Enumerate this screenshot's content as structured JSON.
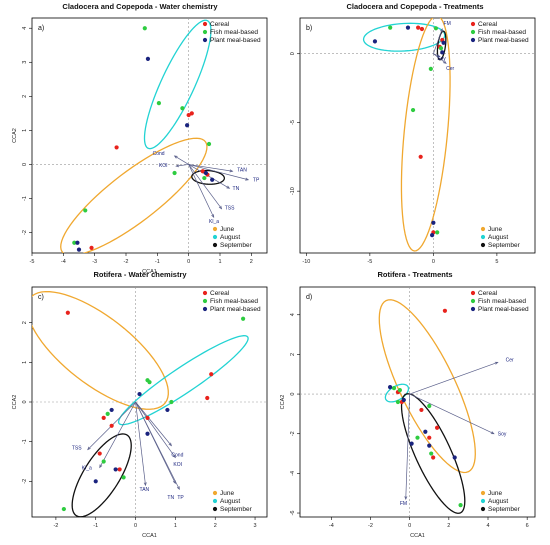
{
  "colors": {
    "cereal": "#e8221c",
    "fish": "#2ecc40",
    "plant": "#1a237e",
    "june": "#f0a830",
    "august": "#22d3d3",
    "september": "#111111",
    "vector": "#5a5f8a"
  },
  "chart_data": [
    {
      "type": "scatter",
      "panel_label": "a)",
      "title": "Cladocera and Copepoda - Water chemistry",
      "xlabel": "CCA1",
      "ylabel": "CCA2",
      "xlim": [
        -5,
        2.5
      ],
      "ylim": [
        -2.6,
        4.3
      ],
      "xticks": [
        -5,
        -4,
        -3,
        -2,
        -1,
        0,
        1,
        2
      ],
      "yticks": [
        -2,
        -1,
        0,
        1,
        2,
        3,
        4
      ],
      "legend_top": {
        "position": "top-right",
        "entries": [
          "Cereal",
          "Fish meal-based",
          "Plant meal-based"
        ]
      },
      "legend_bottom": {
        "position": "bottom-right",
        "entries": [
          "June",
          "August",
          "September"
        ]
      },
      "series": [
        {
          "name": "Cereal",
          "color_key": "cereal",
          "points": [
            [
              0.1,
              1.5
            ],
            [
              0.0,
              1.45
            ],
            [
              -2.3,
              0.5
            ],
            [
              -3.1,
              -2.45
            ],
            [
              0.6,
              -0.3
            ],
            [
              0.45,
              -0.2
            ]
          ]
        },
        {
          "name": "Fish meal-based",
          "color_key": "fish",
          "points": [
            [
              -1.4,
              4.0
            ],
            [
              -0.2,
              1.65
            ],
            [
              0.65,
              0.6
            ],
            [
              -0.95,
              1.8
            ],
            [
              -3.3,
              -1.35
            ],
            [
              -3.65,
              -2.3
            ],
            [
              -0.45,
              -0.25
            ],
            [
              0.5,
              -0.4
            ]
          ]
        },
        {
          "name": "Plant meal-based",
          "color_key": "plant",
          "points": [
            [
              -1.3,
              3.1
            ],
            [
              -0.05,
              1.15
            ],
            [
              -3.55,
              -2.3
            ],
            [
              -3.5,
              -2.5
            ],
            [
              0.75,
              -0.45
            ],
            [
              0.55,
              -0.25
            ]
          ]
        }
      ],
      "ellipses": [
        {
          "month": "August",
          "color_key": "august",
          "cx": -0.35,
          "cy": 2.35,
          "rx": 2.1,
          "ry": 0.52,
          "angle_deg": 63
        },
        {
          "month": "June",
          "color_key": "june",
          "cx": -1.75,
          "cy": -0.95,
          "rx": 2.8,
          "ry": 0.75,
          "angle_deg": 35
        },
        {
          "month": "September",
          "color_key": "september",
          "cx": 0.62,
          "cy": -0.38,
          "rx": 0.52,
          "ry": 0.2,
          "angle_deg": -3
        }
      ],
      "vectors": [
        {
          "label": "TAN",
          "end": [
            1.4,
            -0.2
          ],
          "label_pos": [
            1.55,
            -0.2
          ]
        },
        {
          "label": "TP",
          "end": [
            1.9,
            -0.45
          ],
          "label_pos": [
            2.05,
            -0.5
          ]
        },
        {
          "label": "TN",
          "end": [
            1.3,
            -0.7
          ],
          "label_pos": [
            1.4,
            -0.75
          ]
        },
        {
          "label": "TSS",
          "end": [
            1.05,
            -1.3
          ],
          "label_pos": [
            1.15,
            -1.33
          ]
        },
        {
          "label": "Kl_a",
          "end": [
            0.8,
            -1.55
          ],
          "label_pos": [
            0.65,
            -1.72
          ]
        },
        {
          "label": "Cond",
          "end": [
            -0.45,
            0.25
          ],
          "label_pos": [
            -1.15,
            0.28
          ]
        },
        {
          "label": "KOI",
          "end": [
            -0.4,
            -0.05
          ],
          "label_pos": [
            -0.95,
            -0.08
          ]
        }
      ]
    },
    {
      "type": "scatter",
      "panel_label": "b)",
      "title": "Cladocera and Copepoda - Treatments",
      "xlabel": "",
      "ylabel": "",
      "xlim": [
        -10.5,
        8
      ],
      "ylim": [
        -14.5,
        2.6
      ],
      "xticks": [
        -10,
        -5,
        0,
        5
      ],
      "yticks": [
        -10,
        -5,
        0
      ],
      "legend_top": {
        "position": "top-right",
        "entries": [
          "Cereal",
          "Fish meal-based",
          "Plant meal-based"
        ]
      },
      "legend_bottom": {
        "position": "bottom-right",
        "entries": [
          "June",
          "August",
          "September"
        ]
      },
      "series": [
        {
          "name": "Cereal",
          "color_key": "cereal",
          "points": [
            [
              -1.2,
              1.9
            ],
            [
              -0.9,
              1.8
            ],
            [
              0.7,
              1.0
            ],
            [
              0.5,
              0.5
            ],
            [
              -1.0,
              -7.5
            ],
            [
              0.0,
              -13.0
            ]
          ]
        },
        {
          "name": "Fish meal-based",
          "color_key": "fish",
          "points": [
            [
              -3.4,
              1.9
            ],
            [
              0.2,
              1.85
            ],
            [
              -0.2,
              -1.1
            ],
            [
              -1.6,
              -4.1
            ],
            [
              0.3,
              -13.0
            ],
            [
              0.6,
              0.4
            ]
          ]
        },
        {
          "name": "Plant meal-based",
          "color_key": "plant",
          "points": [
            [
              -4.6,
              0.9
            ],
            [
              -2.0,
              1.9
            ],
            [
              0.7,
              0.1
            ],
            [
              0.0,
              -12.3
            ],
            [
              -0.1,
              -13.2
            ],
            [
              0.8,
              0.8
            ]
          ]
        }
      ],
      "ellipses": [
        {
          "month": "August",
          "color_key": "august",
          "cx": -2.3,
          "cy": 1.2,
          "rx": 3.2,
          "ry": 1.0,
          "angle_deg": 3
        },
        {
          "month": "June",
          "color_key": "june",
          "cx": -0.6,
          "cy": -5.8,
          "rx": 8.6,
          "ry": 1.7,
          "angle_deg": 84
        },
        {
          "month": "September",
          "color_key": "september",
          "cx": 0.65,
          "cy": 0.6,
          "rx": 1.05,
          "ry": 0.3,
          "angle_deg": 82
        }
      ],
      "vectors": [
        {
          "label": "FM",
          "end": [
            0.7,
            1.8
          ],
          "label_pos": [
            0.8,
            2.1
          ]
        },
        {
          "label": "Soy",
          "end": [
            0.5,
            -0.2
          ],
          "label_pos": [
            0.3,
            -0.45
          ]
        },
        {
          "label": "Cer",
          "end": [
            1.0,
            -0.7
          ],
          "label_pos": [
            1.0,
            -1.2
          ]
        }
      ]
    },
    {
      "type": "scatter",
      "panel_label": "c)",
      "title": "Rotifera - Water chemistry",
      "xlabel": "CCA1",
      "ylabel": "CCA2",
      "xlim": [
        -2.6,
        3.3
      ],
      "ylim": [
        -2.9,
        2.9
      ],
      "xticks": [
        -2,
        -1,
        0,
        1,
        2,
        3
      ],
      "yticks": [
        -2,
        -1,
        0,
        1,
        2
      ],
      "legend_top": {
        "position": "top-right",
        "entries": [
          "Cereal",
          "Fish meal-based",
          "Plant meal-based"
        ]
      },
      "legend_bottom": {
        "position": "bottom-right",
        "entries": [
          "June",
          "August",
          "September"
        ]
      },
      "series": [
        {
          "name": "Cereal",
          "color_key": "cereal",
          "points": [
            [
              -1.7,
              2.25
            ],
            [
              -0.8,
              -0.4
            ],
            [
              -0.6,
              -0.6
            ],
            [
              0.3,
              -0.4
            ],
            [
              1.8,
              0.1
            ],
            [
              1.9,
              0.7
            ],
            [
              -0.9,
              -1.3
            ],
            [
              -0.4,
              -1.7
            ]
          ]
        },
        {
          "name": "Fish meal-based",
          "color_key": "fish",
          "points": [
            [
              -0.7,
              -0.3
            ],
            [
              0.3,
              0.55
            ],
            [
              0.35,
              0.5
            ],
            [
              0.9,
              0.0
            ],
            [
              -0.8,
              -1.5
            ],
            [
              -0.3,
              -1.9
            ],
            [
              -1.8,
              -2.7
            ],
            [
              2.7,
              2.1
            ]
          ]
        },
        {
          "name": "Plant meal-based",
          "color_key": "plant",
          "points": [
            [
              0.1,
              0.2
            ],
            [
              -0.6,
              -0.2
            ],
            [
              0.8,
              -0.2
            ],
            [
              -1.0,
              -2.0
            ],
            [
              -0.5,
              -1.7
            ],
            [
              0.3,
              -0.8
            ]
          ]
        }
      ],
      "ellipses": [
        {
          "month": "June",
          "color_key": "june",
          "cx": -0.95,
          "cy": 1.3,
          "rx": 2.15,
          "ry": 0.85,
          "angle_deg": -38
        },
        {
          "month": "August",
          "color_key": "august",
          "cx": 1.2,
          "cy": 0.55,
          "rx": 1.95,
          "ry": 0.32,
          "angle_deg": 34
        },
        {
          "month": "September",
          "color_key": "september",
          "cx": -0.85,
          "cy": -1.85,
          "rx": 1.2,
          "ry": 0.45,
          "angle_deg": 58
        }
      ],
      "vectors": [
        {
          "label": "TSS",
          "end": [
            -1.2,
            -1.2
          ],
          "label_pos": [
            -1.6,
            -1.2
          ]
        },
        {
          "label": "Kl_a",
          "end": [
            -0.9,
            -1.65
          ],
          "label_pos": [
            -1.35,
            -1.7
          ]
        },
        {
          "label": "TAN",
          "end": [
            0.25,
            -2.1
          ],
          "label_pos": [
            0.1,
            -2.25
          ]
        },
        {
          "label": "TN",
          "end": [
            1.0,
            -2.05
          ],
          "label_pos": [
            0.8,
            -2.45
          ]
        },
        {
          "label": "TP",
          "end": [
            1.1,
            -2.2
          ],
          "label_pos": [
            1.05,
            -2.45
          ]
        },
        {
          "label": "Cond",
          "end": [
            0.9,
            -1.1
          ],
          "label_pos": [
            0.9,
            -1.37
          ]
        },
        {
          "label": "KOI",
          "end": [
            1.0,
            -1.4
          ],
          "label_pos": [
            0.95,
            -1.62
          ]
        }
      ]
    },
    {
      "type": "scatter",
      "panel_label": "d)",
      "title": "Rotifera - Treatments",
      "xlabel": "CCA1",
      "ylabel": "CCA2",
      "xlim": [
        -5.6,
        6.4
      ],
      "ylim": [
        -6.2,
        5.4
      ],
      "xticks": [
        -4,
        -2,
        0,
        2,
        4,
        6
      ],
      "yticks": [
        -6,
        -4,
        -2,
        0,
        2,
        4
      ],
      "legend_top": {
        "position": "top-right",
        "entries": [
          "Cereal",
          "Fish meal-based",
          "Plant meal-based"
        ]
      },
      "legend_bottom": {
        "position": "bottom-right",
        "entries": [
          "June",
          "August",
          "September"
        ]
      },
      "series": [
        {
          "name": "Cereal",
          "color_key": "cereal",
          "points": [
            [
              1.8,
              4.2
            ],
            [
              0.6,
              -0.8
            ],
            [
              1.4,
              -1.7
            ],
            [
              1.0,
              -2.2
            ],
            [
              1.2,
              -3.2
            ],
            [
              -0.4,
              -0.4
            ],
            [
              -0.6,
              0.1
            ]
          ]
        },
        {
          "name": "Fish meal-based",
          "color_key": "fish",
          "points": [
            [
              -0.8,
              0.3
            ],
            [
              -0.5,
              0.2
            ],
            [
              1.0,
              -0.6
            ],
            [
              -0.6,
              -0.4
            ],
            [
              0.4,
              -2.2
            ],
            [
              1.1,
              -3.0
            ],
            [
              2.6,
              -5.6
            ]
          ]
        },
        {
          "name": "Plant meal-based",
          "color_key": "plant",
          "points": [
            [
              -1.0,
              0.35
            ],
            [
              -0.3,
              -0.3
            ],
            [
              0.8,
              -1.9
            ],
            [
              1.0,
              -2.6
            ],
            [
              0.1,
              -2.5
            ],
            [
              2.3,
              -3.2
            ]
          ]
        }
      ],
      "ellipses": [
        {
          "month": "June",
          "color_key": "june",
          "cx": 0.9,
          "cy": 0.4,
          "rx": 4.8,
          "ry": 1.4,
          "angle_deg": -64
        },
        {
          "month": "August",
          "color_key": "august",
          "cx": -0.65,
          "cy": 0.05,
          "rx": 0.65,
          "ry": 0.35,
          "angle_deg": 30
        },
        {
          "month": "September",
          "color_key": "september",
          "cx": 1.2,
          "cy": -3.0,
          "rx": 3.3,
          "ry": 0.9,
          "angle_deg": -65
        }
      ],
      "vectors": [
        {
          "label": "Cer",
          "end": [
            4.5,
            1.6
          ],
          "label_pos": [
            4.9,
            1.65
          ]
        },
        {
          "label": "Soy",
          "end": [
            4.3,
            -2.0
          ],
          "label_pos": [
            4.5,
            -2.1
          ]
        },
        {
          "label": "FM",
          "end": [
            -0.2,
            -5.3
          ],
          "label_pos": [
            -0.5,
            -5.6
          ]
        }
      ]
    }
  ]
}
